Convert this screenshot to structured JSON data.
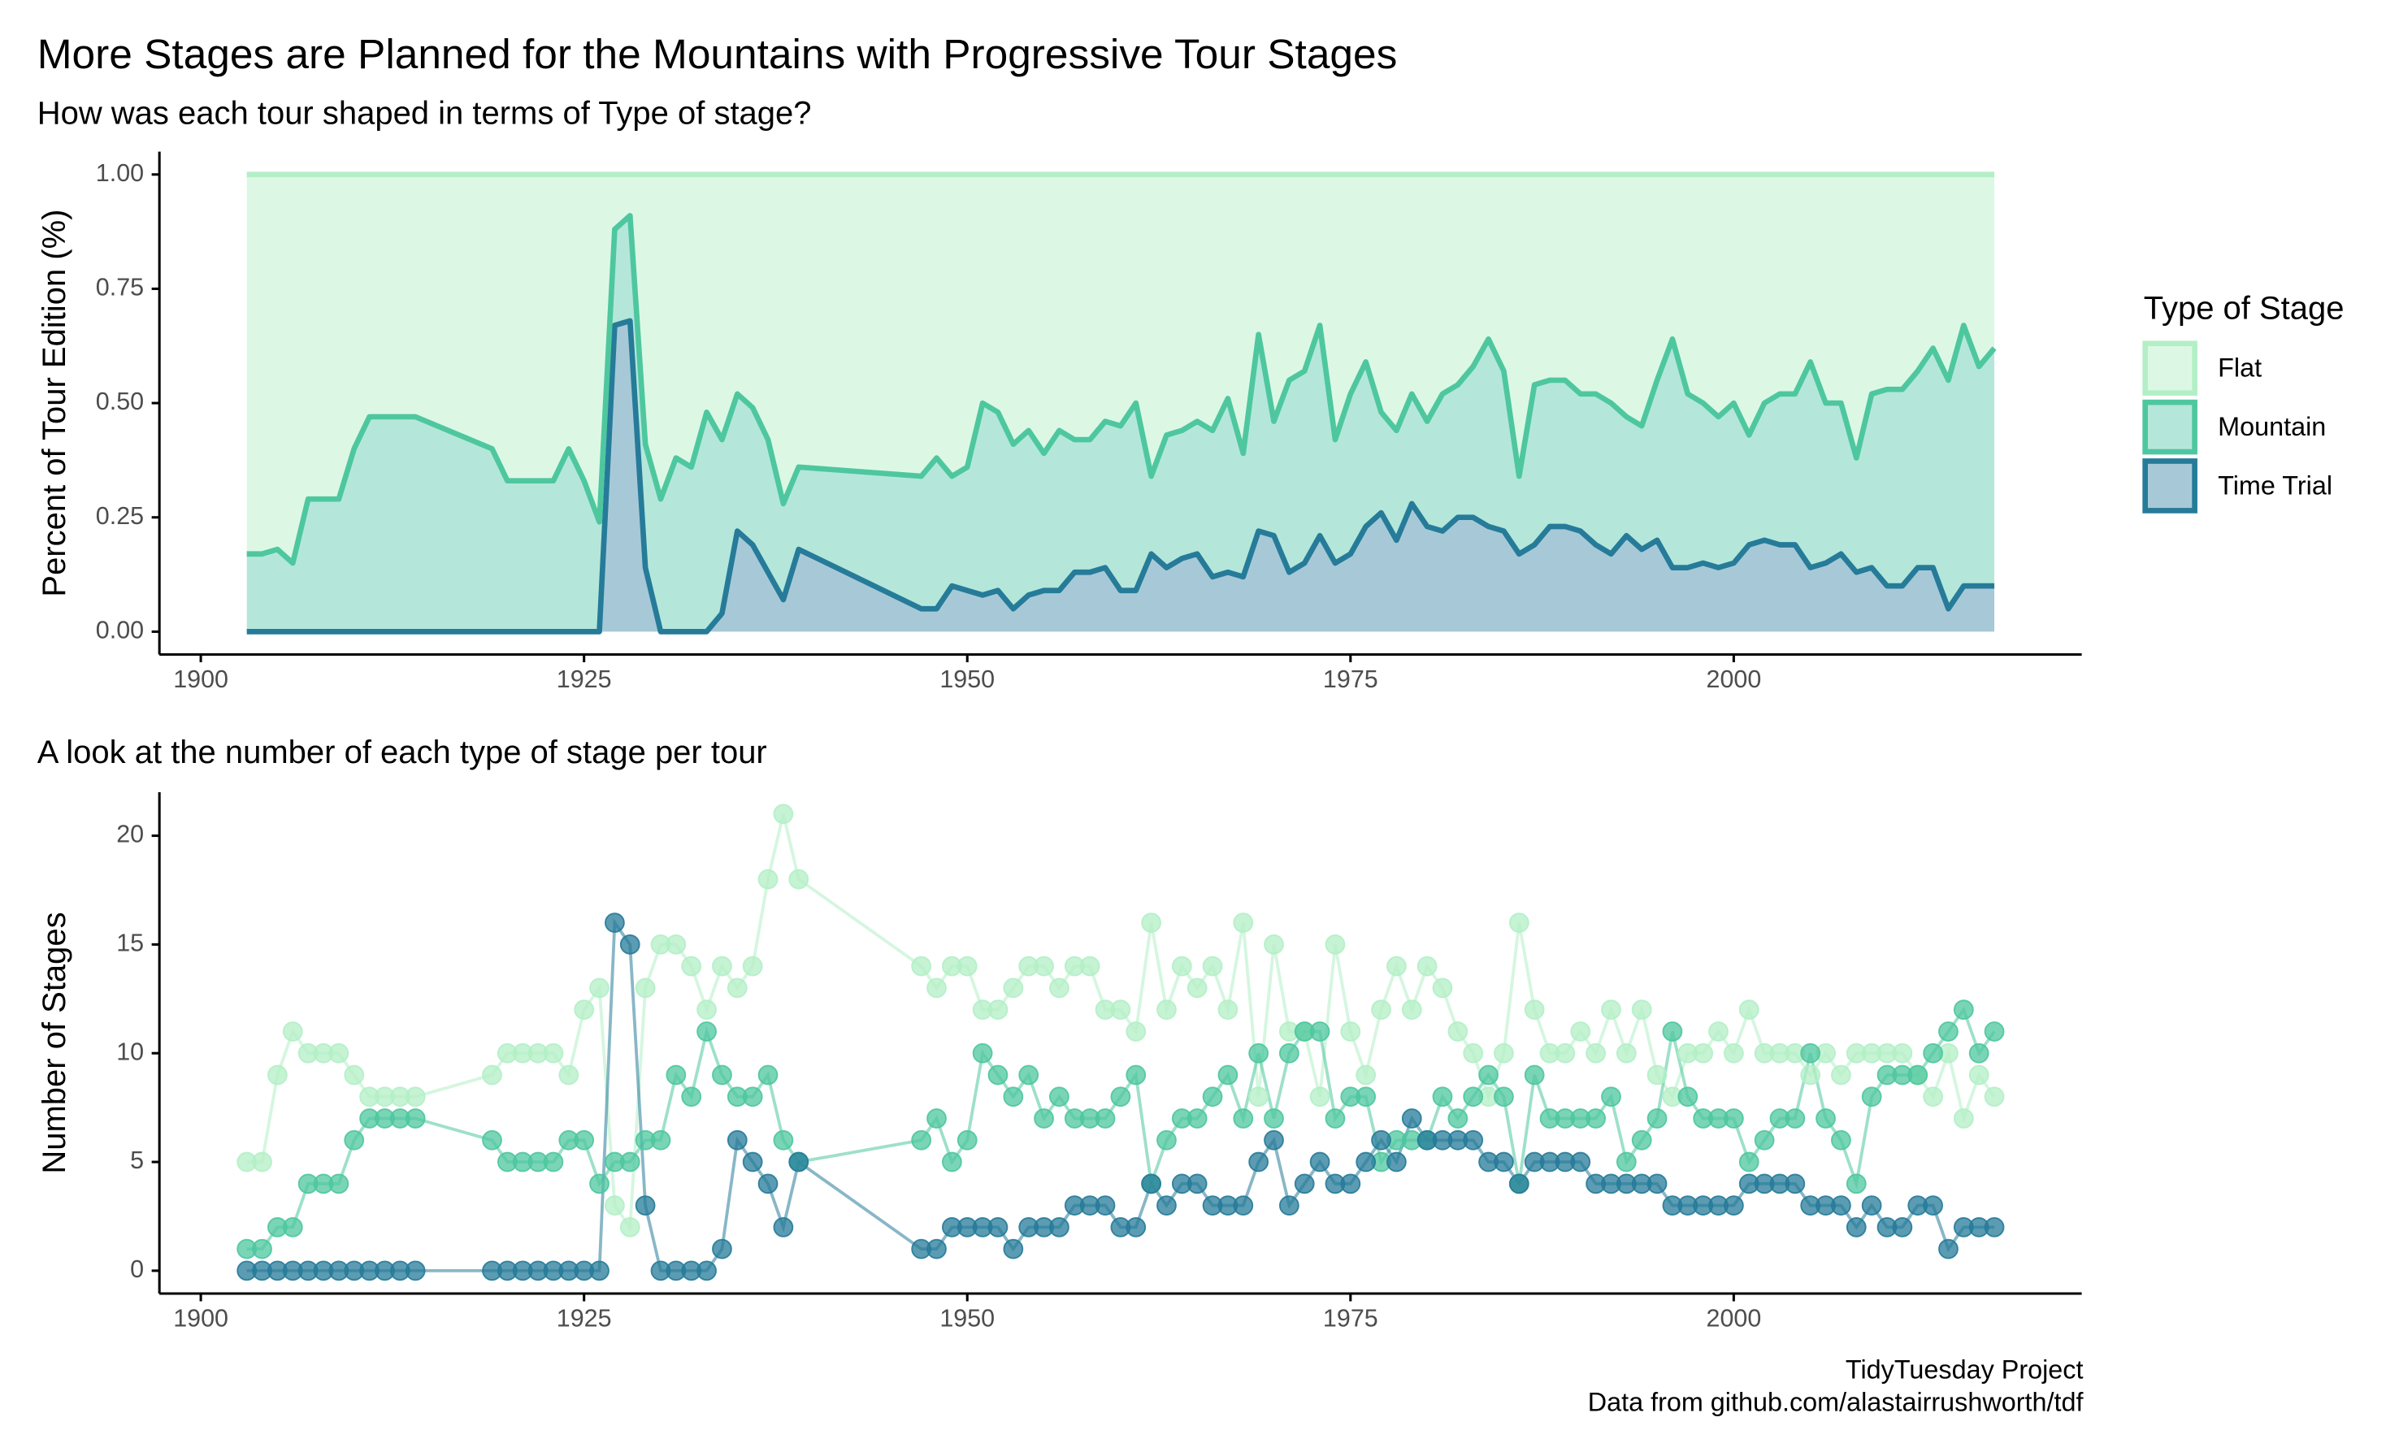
{
  "chart_data": [
    {
      "type": "area",
      "title": "More Stages are Planned for the Mountains with Progressive Tour Stages",
      "subtitle": "How was each tour shaped in terms of Type of stage?",
      "y_label": "Percent of Tour Edition (%)",
      "legend_title": "Type of Stage",
      "legend_position": "right",
      "x": [
        1903,
        1904,
        1905,
        1906,
        1907,
        1908,
        1909,
        1910,
        1911,
        1912,
        1913,
        1914,
        1919,
        1920,
        1921,
        1922,
        1923,
        1924,
        1925,
        1926,
        1927,
        1928,
        1929,
        1930,
        1931,
        1932,
        1933,
        1934,
        1935,
        1936,
        1937,
        1938,
        1939,
        1947,
        1948,
        1949,
        1950,
        1951,
        1952,
        1953,
        1954,
        1955,
        1956,
        1957,
        1958,
        1959,
        1960,
        1961,
        1962,
        1963,
        1964,
        1965,
        1966,
        1967,
        1968,
        1969,
        1970,
        1971,
        1972,
        1973,
        1974,
        1975,
        1976,
        1977,
        1978,
        1979,
        1980,
        1981,
        1982,
        1983,
        1984,
        1985,
        1986,
        1987,
        1988,
        1989,
        1990,
        1991,
        1992,
        1993,
        1994,
        1995,
        1996,
        1997,
        1998,
        1999,
        2000,
        2001,
        2002,
        2003,
        2004,
        2005,
        2006,
        2007,
        2008,
        2009,
        2010,
        2011,
        2012,
        2013,
        2014,
        2015,
        2016,
        2017
      ],
      "series": [
        {
          "name": "Flat",
          "color": "#b3efc6",
          "fill": "#dcf8e4",
          "values": [
            0.83,
            0.83,
            0.82,
            0.85,
            0.71,
            0.71,
            0.71,
            0.6,
            0.53,
            0.53,
            0.53,
            0.53,
            0.6,
            0.67,
            0.67,
            0.67,
            0.67,
            0.6,
            0.67,
            0.76,
            0.12,
            0.09,
            0.59,
            0.71,
            0.62,
            0.64,
            0.52,
            0.58,
            0.48,
            0.51,
            0.58,
            0.72,
            0.64,
            0.66,
            0.62,
            0.66,
            0.64,
            0.5,
            0.52,
            0.59,
            0.56,
            0.61,
            0.56,
            0.58,
            0.58,
            0.54,
            0.55,
            0.5,
            0.66,
            0.57,
            0.56,
            0.54,
            0.56,
            0.49,
            0.61,
            0.35,
            0.54,
            0.45,
            0.43,
            0.33,
            0.58,
            0.48,
            0.41,
            0.52,
            0.56,
            0.48,
            0.54,
            0.48,
            0.46,
            0.42,
            0.36,
            0.43,
            0.66,
            0.46,
            0.45,
            0.45,
            0.48,
            0.48,
            0.5,
            0.53,
            0.55,
            0.45,
            0.36,
            0.48,
            0.5,
            0.53,
            0.5,
            0.57,
            0.5,
            0.48,
            0.48,
            0.41,
            0.5,
            0.5,
            0.62,
            0.48,
            0.47,
            0.47,
            0.43,
            0.38,
            0.45,
            0.33,
            0.42,
            0.38
          ]
        },
        {
          "name": "Mountain",
          "color": "#4ec79f",
          "fill": "#b4e7da",
          "values": [
            0.17,
            0.17,
            0.18,
            0.15,
            0.29,
            0.29,
            0.29,
            0.4,
            0.47,
            0.47,
            0.47,
            0.47,
            0.4,
            0.33,
            0.33,
            0.33,
            0.33,
            0.4,
            0.33,
            0.24,
            0.21,
            0.23,
            0.27,
            0.29,
            0.38,
            0.36,
            0.48,
            0.38,
            0.3,
            0.3,
            0.29,
            0.21,
            0.18,
            0.29,
            0.33,
            0.24,
            0.27,
            0.42,
            0.39,
            0.36,
            0.36,
            0.3,
            0.35,
            0.29,
            0.29,
            0.32,
            0.36,
            0.41,
            0.17,
            0.29,
            0.28,
            0.29,
            0.32,
            0.38,
            0.27,
            0.43,
            0.25,
            0.42,
            0.42,
            0.46,
            0.27,
            0.35,
            0.36,
            0.22,
            0.24,
            0.24,
            0.23,
            0.3,
            0.29,
            0.33,
            0.41,
            0.35,
            0.17,
            0.35,
            0.32,
            0.32,
            0.3,
            0.33,
            0.33,
            0.26,
            0.27,
            0.35,
            0.5,
            0.38,
            0.35,
            0.33,
            0.35,
            0.24,
            0.3,
            0.33,
            0.33,
            0.45,
            0.35,
            0.33,
            0.25,
            0.38,
            0.43,
            0.43,
            0.43,
            0.48,
            0.5,
            0.57,
            0.48,
            0.52
          ]
        },
        {
          "name": "Time Trial",
          "color": "#267b99",
          "fill": "#a7c9d7",
          "values": [
            0,
            0,
            0,
            0,
            0,
            0,
            0,
            0,
            0,
            0,
            0,
            0,
            0,
            0,
            0,
            0,
            0,
            0,
            0,
            0,
            0.67,
            0.68,
            0.14,
            0,
            0,
            0,
            0,
            0.04,
            0.22,
            0.19,
            0.13,
            0.07,
            0.18,
            0.05,
            0.05,
            0.1,
            0.09,
            0.08,
            0.09,
            0.05,
            0.08,
            0.09,
            0.09,
            0.13,
            0.13,
            0.14,
            0.09,
            0.09,
            0.17,
            0.14,
            0.16,
            0.17,
            0.12,
            0.13,
            0.12,
            0.22,
            0.21,
            0.13,
            0.15,
            0.21,
            0.15,
            0.17,
            0.23,
            0.26,
            0.2,
            0.28,
            0.23,
            0.22,
            0.25,
            0.25,
            0.23,
            0.22,
            0.17,
            0.19,
            0.23,
            0.23,
            0.22,
            0.19,
            0.17,
            0.21,
            0.18,
            0.2,
            0.14,
            0.14,
            0.15,
            0.14,
            0.15,
            0.19,
            0.2,
            0.19,
            0.19,
            0.14,
            0.15,
            0.17,
            0.13,
            0.14,
            0.1,
            0.1,
            0.14,
            0.14,
            0.05,
            0.1,
            0.1,
            0.1
          ]
        }
      ],
      "xlim": [
        1897.3,
        2022.7
      ],
      "xticks": [
        1900,
        1925,
        1950,
        1975,
        2000
      ],
      "ylim": [
        -0.05,
        1.05
      ],
      "yticks": [
        {
          "value": 0,
          "label": "0.00"
        },
        {
          "value": 0.25,
          "label": "0.25"
        },
        {
          "value": 0.5,
          "label": "0.50"
        },
        {
          "value": 0.75,
          "label": "0.75"
        },
        {
          "value": 1,
          "label": "1.00"
        }
      ]
    },
    {
      "type": "line",
      "title": "A look at the number of each type of stage per tour",
      "y_label": "Number of Stages",
      "x": [
        1903,
        1904,
        1905,
        1906,
        1907,
        1908,
        1909,
        1910,
        1911,
        1912,
        1913,
        1914,
        1919,
        1920,
        1921,
        1922,
        1923,
        1924,
        1925,
        1926,
        1927,
        1928,
        1929,
        1930,
        1931,
        1932,
        1933,
        1934,
        1935,
        1936,
        1937,
        1938,
        1939,
        1947,
        1948,
        1949,
        1950,
        1951,
        1952,
        1953,
        1954,
        1955,
        1956,
        1957,
        1958,
        1959,
        1960,
        1961,
        1962,
        1963,
        1964,
        1965,
        1966,
        1967,
        1968,
        1969,
        1970,
        1971,
        1972,
        1973,
        1974,
        1975,
        1976,
        1977,
        1978,
        1979,
        1980,
        1981,
        1982,
        1983,
        1984,
        1985,
        1986,
        1987,
        1988,
        1989,
        1990,
        1991,
        1992,
        1993,
        1994,
        1995,
        1996,
        1997,
        1998,
        1999,
        2000,
        2001,
        2002,
        2003,
        2004,
        2005,
        2006,
        2007,
        2008,
        2009,
        2010,
        2011,
        2012,
        2013,
        2014,
        2015,
        2016,
        2017
      ],
      "series": [
        {
          "name": "Flat",
          "color": "#b3efc6",
          "values": [
            5,
            5,
            9,
            11,
            10,
            10,
            10,
            9,
            8,
            8,
            8,
            8,
            9,
            10,
            10,
            10,
            10,
            9,
            12,
            13,
            3,
            2,
            13,
            15,
            15,
            14,
            12,
            14,
            13,
            14,
            18,
            21,
            18,
            14,
            13,
            14,
            14,
            12,
            12,
            13,
            14,
            14,
            13,
            14,
            14,
            12,
            12,
            11,
            16,
            12,
            14,
            13,
            14,
            12,
            16,
            8,
            15,
            11,
            11,
            8,
            15,
            11,
            9,
            12,
            14,
            12,
            14,
            13,
            11,
            10,
            8,
            10,
            16,
            12,
            10,
            10,
            11,
            10,
            12,
            10,
            12,
            9,
            8,
            10,
            10,
            11,
            10,
            12,
            10,
            10,
            10,
            9,
            10,
            9,
            10,
            10,
            10,
            10,
            9,
            8,
            10,
            7,
            9,
            8
          ]
        },
        {
          "name": "Mountain",
          "color": "#4ec79f",
          "values": [
            1,
            1,
            2,
            2,
            4,
            4,
            4,
            6,
            7,
            7,
            7,
            7,
            6,
            5,
            5,
            5,
            5,
            6,
            6,
            4,
            5,
            5,
            6,
            6,
            9,
            8,
            11,
            9,
            8,
            8,
            9,
            6,
            5,
            6,
            7,
            5,
            6,
            10,
            9,
            8,
            9,
            7,
            8,
            7,
            7,
            7,
            8,
            9,
            4,
            6,
            7,
            7,
            8,
            9,
            7,
            10,
            7,
            10,
            11,
            11,
            7,
            8,
            8,
            5,
            6,
            6,
            6,
            8,
            7,
            8,
            9,
            8,
            4,
            9,
            7,
            7,
            7,
            7,
            8,
            5,
            6,
            7,
            11,
            8,
            7,
            7,
            7,
            5,
            6,
            7,
            7,
            10,
            7,
            6,
            4,
            8,
            9,
            9,
            9,
            10,
            11,
            12,
            10,
            11
          ]
        },
        {
          "name": "Time Trial",
          "color": "#267b99",
          "values": [
            0,
            0,
            0,
            0,
            0,
            0,
            0,
            0,
            0,
            0,
            0,
            0,
            0,
            0,
            0,
            0,
            0,
            0,
            0,
            0,
            16,
            15,
            3,
            0,
            0,
            0,
            0,
            1,
            6,
            5,
            4,
            2,
            5,
            1,
            1,
            2,
            2,
            2,
            2,
            1,
            2,
            2,
            2,
            3,
            3,
            3,
            2,
            2,
            4,
            3,
            4,
            4,
            3,
            3,
            3,
            5,
            6,
            3,
            4,
            5,
            4,
            4,
            5,
            6,
            5,
            7,
            6,
            6,
            6,
            6,
            5,
            5,
            4,
            5,
            5,
            5,
            5,
            4,
            4,
            4,
            4,
            4,
            3,
            3,
            3,
            3,
            3,
            4,
            4,
            4,
            4,
            3,
            3,
            3,
            2,
            3,
            2,
            2,
            3,
            3,
            1,
            2,
            2,
            2
          ]
        }
      ],
      "xlim": [
        1897.3,
        2022.7
      ],
      "xticks": [
        1900,
        1925,
        1950,
        1975,
        2000
      ],
      "ylim": [
        -1.05,
        22
      ],
      "yticks": [
        0,
        5,
        10,
        15,
        20
      ]
    }
  ],
  "caption": [
    "TidyTuesday Project",
    "Data from github.com/alastairrushworth/tdf"
  ]
}
